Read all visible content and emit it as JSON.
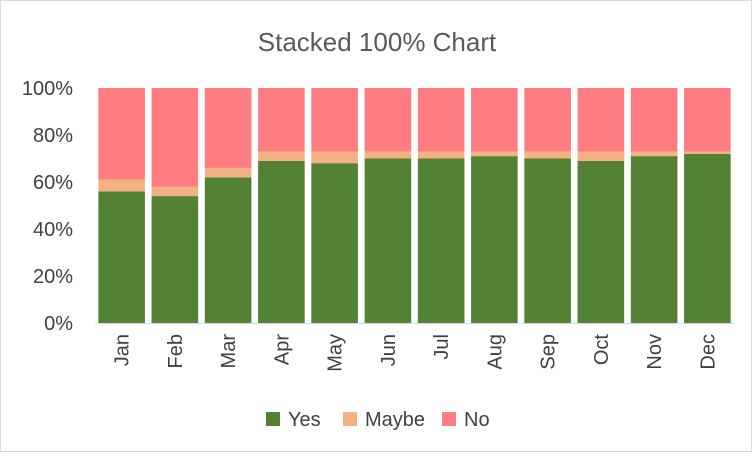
{
  "chart_data": {
    "type": "bar",
    "stacked": true,
    "percent": true,
    "title": "Stacked 100% Chart",
    "xlabel": "",
    "ylabel": "",
    "categories": [
      "Jan",
      "Feb",
      "Mar",
      "Apr",
      "May",
      "Jun",
      "Jul",
      "Aug",
      "Sep",
      "Oct",
      "Nov",
      "Dec"
    ],
    "series": [
      {
        "name": "Yes",
        "color": "#548235",
        "values": [
          56,
          54,
          62,
          69,
          68,
          70,
          70,
          71,
          70,
          69,
          71,
          72
        ]
      },
      {
        "name": "Maybe",
        "color": "#f4b183",
        "values": [
          5,
          4,
          4,
          4,
          5,
          3,
          3,
          2,
          3,
          4,
          2,
          1
        ]
      },
      {
        "name": "No",
        "color": "#ff7c80",
        "values": [
          39,
          42,
          34,
          27,
          27,
          27,
          27,
          27,
          27,
          27,
          27,
          27
        ]
      }
    ],
    "ylim": [
      0,
      100
    ],
    "yticks": [
      "0%",
      "20%",
      "40%",
      "60%",
      "80%",
      "100%"
    ],
    "grid": false,
    "legend": "bottom"
  }
}
